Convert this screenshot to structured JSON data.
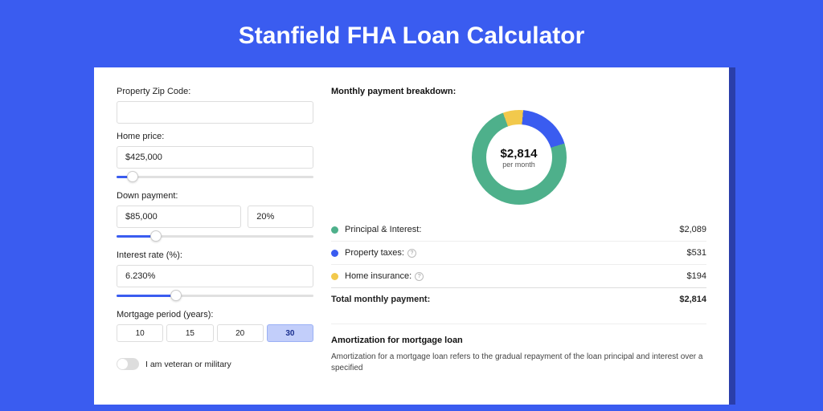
{
  "title": "Stanfield FHA Loan Calculator",
  "colors": {
    "page_bg": "#3a5cf0",
    "card_shadow": "#2a3eaa",
    "principal": "#4eb08b",
    "taxes": "#3a5cf0",
    "insurance": "#f2c94c"
  },
  "form": {
    "zip_label": "Property Zip Code:",
    "zip_value": "",
    "home_price_label": "Home price:",
    "home_price_value": "$425,000",
    "home_price_slider_pct": 8,
    "down_label": "Down payment:",
    "down_amount": "$85,000",
    "down_pct": "20%",
    "down_slider_pct": 20,
    "rate_label": "Interest rate (%):",
    "rate_value": "6.230%",
    "rate_slider_pct": 30,
    "period_label": "Mortgage period (years):",
    "period_options": [
      "10",
      "15",
      "20",
      "30"
    ],
    "period_active": "30",
    "veteran_label": "I am veteran or military"
  },
  "breakdown": {
    "title": "Monthly payment breakdown:",
    "donut_amount": "$2,814",
    "donut_sub": "per month",
    "slices": {
      "principal_pct": 74.2,
      "taxes_pct": 18.9,
      "insurance_pct": 6.9
    },
    "rows": [
      {
        "key": "principal",
        "label": "Principal & Interest:",
        "value": "$2,089",
        "color": "#4eb08b",
        "help": false
      },
      {
        "key": "taxes",
        "label": "Property taxes:",
        "value": "$531",
        "color": "#3a5cf0",
        "help": true
      },
      {
        "key": "insurance",
        "label": "Home insurance:",
        "value": "$194",
        "color": "#f2c94c",
        "help": true
      }
    ],
    "total_label": "Total monthly payment:",
    "total_value": "$2,814"
  },
  "amort": {
    "title": "Amortization for mortgage loan",
    "text": "Amortization for a mortgage loan refers to the gradual repayment of the loan principal and interest over a specified"
  }
}
